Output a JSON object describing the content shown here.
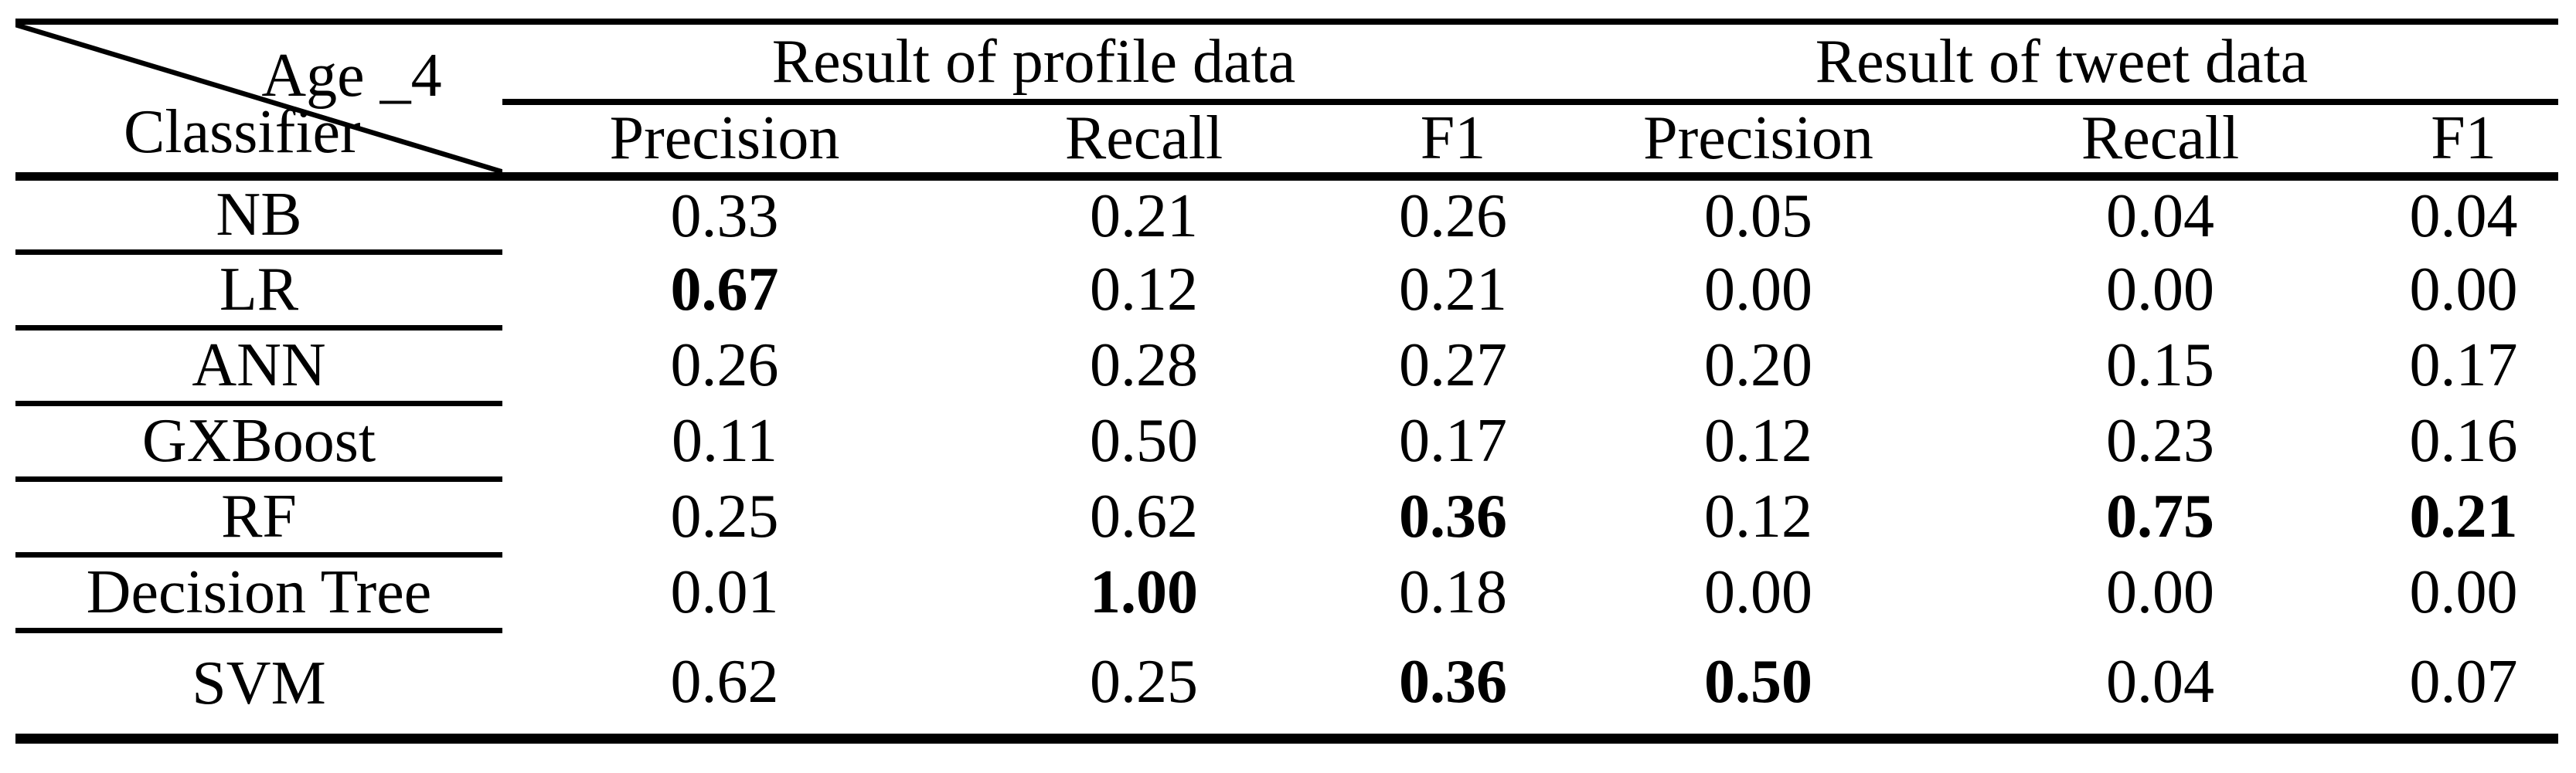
{
  "table": {
    "corner": {
      "top_label": "Age _4",
      "bottom_label": "Classifier"
    },
    "groups": [
      {
        "label": "Result of profile data"
      },
      {
        "label": "Result of tweet data"
      }
    ],
    "sub_headers": [
      "Precision",
      "Recall",
      "F1",
      "Precision",
      "Recall",
      "F1"
    ],
    "rows": [
      {
        "classifier": "NB",
        "values": [
          {
            "v": "0.33",
            "bold": false
          },
          {
            "v": "0.21",
            "bold": false
          },
          {
            "v": "0.26",
            "bold": false
          },
          {
            "v": "0.05",
            "bold": false
          },
          {
            "v": "0.04",
            "bold": false
          },
          {
            "v": "0.04",
            "bold": false
          }
        ]
      },
      {
        "classifier": "LR",
        "values": [
          {
            "v": "0.67",
            "bold": true
          },
          {
            "v": "0.12",
            "bold": false
          },
          {
            "v": "0.21",
            "bold": false
          },
          {
            "v": "0.00",
            "bold": false
          },
          {
            "v": "0.00",
            "bold": false
          },
          {
            "v": "0.00",
            "bold": false
          }
        ]
      },
      {
        "classifier": "ANN",
        "values": [
          {
            "v": "0.26",
            "bold": false
          },
          {
            "v": "0.28",
            "bold": false
          },
          {
            "v": "0.27",
            "bold": false
          },
          {
            "v": "0.20",
            "bold": false
          },
          {
            "v": "0.15",
            "bold": false
          },
          {
            "v": "0.17",
            "bold": false
          }
        ]
      },
      {
        "classifier": "GXBoost",
        "values": [
          {
            "v": "0.11",
            "bold": false
          },
          {
            "v": "0.50",
            "bold": false
          },
          {
            "v": "0.17",
            "bold": false
          },
          {
            "v": "0.12",
            "bold": false
          },
          {
            "v": "0.23",
            "bold": false
          },
          {
            "v": "0.16",
            "bold": false
          }
        ]
      },
      {
        "classifier": "RF",
        "values": [
          {
            "v": "0.25",
            "bold": false
          },
          {
            "v": "0.62",
            "bold": false
          },
          {
            "v": "0.36",
            "bold": true
          },
          {
            "v": "0.12",
            "bold": false
          },
          {
            "v": "0.75",
            "bold": true
          },
          {
            "v": "0.21",
            "bold": true
          }
        ]
      },
      {
        "classifier": "Decision Tree",
        "values": [
          {
            "v": "0.01",
            "bold": false
          },
          {
            "v": "1.00",
            "bold": true
          },
          {
            "v": "0.18",
            "bold": false
          },
          {
            "v": "0.00",
            "bold": false
          },
          {
            "v": "0.00",
            "bold": false
          },
          {
            "v": "0.00",
            "bold": false
          }
        ]
      },
      {
        "classifier": "SVM",
        "values": [
          {
            "v": "0.62",
            "bold": false
          },
          {
            "v": "0.25",
            "bold": false
          },
          {
            "v": "0.36",
            "bold": true
          },
          {
            "v": "0.50",
            "bold": true
          },
          {
            "v": "0.04",
            "bold": false
          },
          {
            "v": "0.07",
            "bold": false
          }
        ]
      }
    ],
    "colors": {
      "text": "#000000",
      "rules": "#000000",
      "background": "#ffffff"
    }
  },
  "chart_data": {
    "type": "table",
    "title": "Age _4 classification results",
    "row_header": "Classifier",
    "column_groups": [
      "Result of profile data",
      "Result of tweet data"
    ],
    "columns": [
      "Precision (profile)",
      "Recall (profile)",
      "F1 (profile)",
      "Precision (tweet)",
      "Recall (tweet)",
      "F1 (tweet)"
    ],
    "rows": [
      {
        "classifier": "NB",
        "values": [
          0.33,
          0.21,
          0.26,
          0.05,
          0.04,
          0.04
        ]
      },
      {
        "classifier": "LR",
        "values": [
          0.67,
          0.12,
          0.21,
          0.0,
          0.0,
          0.0
        ]
      },
      {
        "classifier": "ANN",
        "values": [
          0.26,
          0.28,
          0.27,
          0.2,
          0.15,
          0.17
        ]
      },
      {
        "classifier": "GXBoost",
        "values": [
          0.11,
          0.5,
          0.17,
          0.12,
          0.23,
          0.16
        ]
      },
      {
        "classifier": "RF",
        "values": [
          0.25,
          0.62,
          0.36,
          0.12,
          0.75,
          0.21
        ]
      },
      {
        "classifier": "Decision Tree",
        "values": [
          0.01,
          1.0,
          0.18,
          0.0,
          0.0,
          0.0
        ]
      },
      {
        "classifier": "SVM",
        "values": [
          0.62,
          0.25,
          0.36,
          0.5,
          0.04,
          0.07
        ]
      }
    ],
    "bold_cells": [
      [
        "LR",
        "Precision (profile)"
      ],
      [
        "RF",
        "F1 (profile)"
      ],
      [
        "RF",
        "Recall (tweet)"
      ],
      [
        "RF",
        "F1 (tweet)"
      ],
      [
        "Decision Tree",
        "Recall (profile)"
      ],
      [
        "SVM",
        "F1 (profile)"
      ],
      [
        "SVM",
        "Precision (tweet)"
      ]
    ]
  }
}
